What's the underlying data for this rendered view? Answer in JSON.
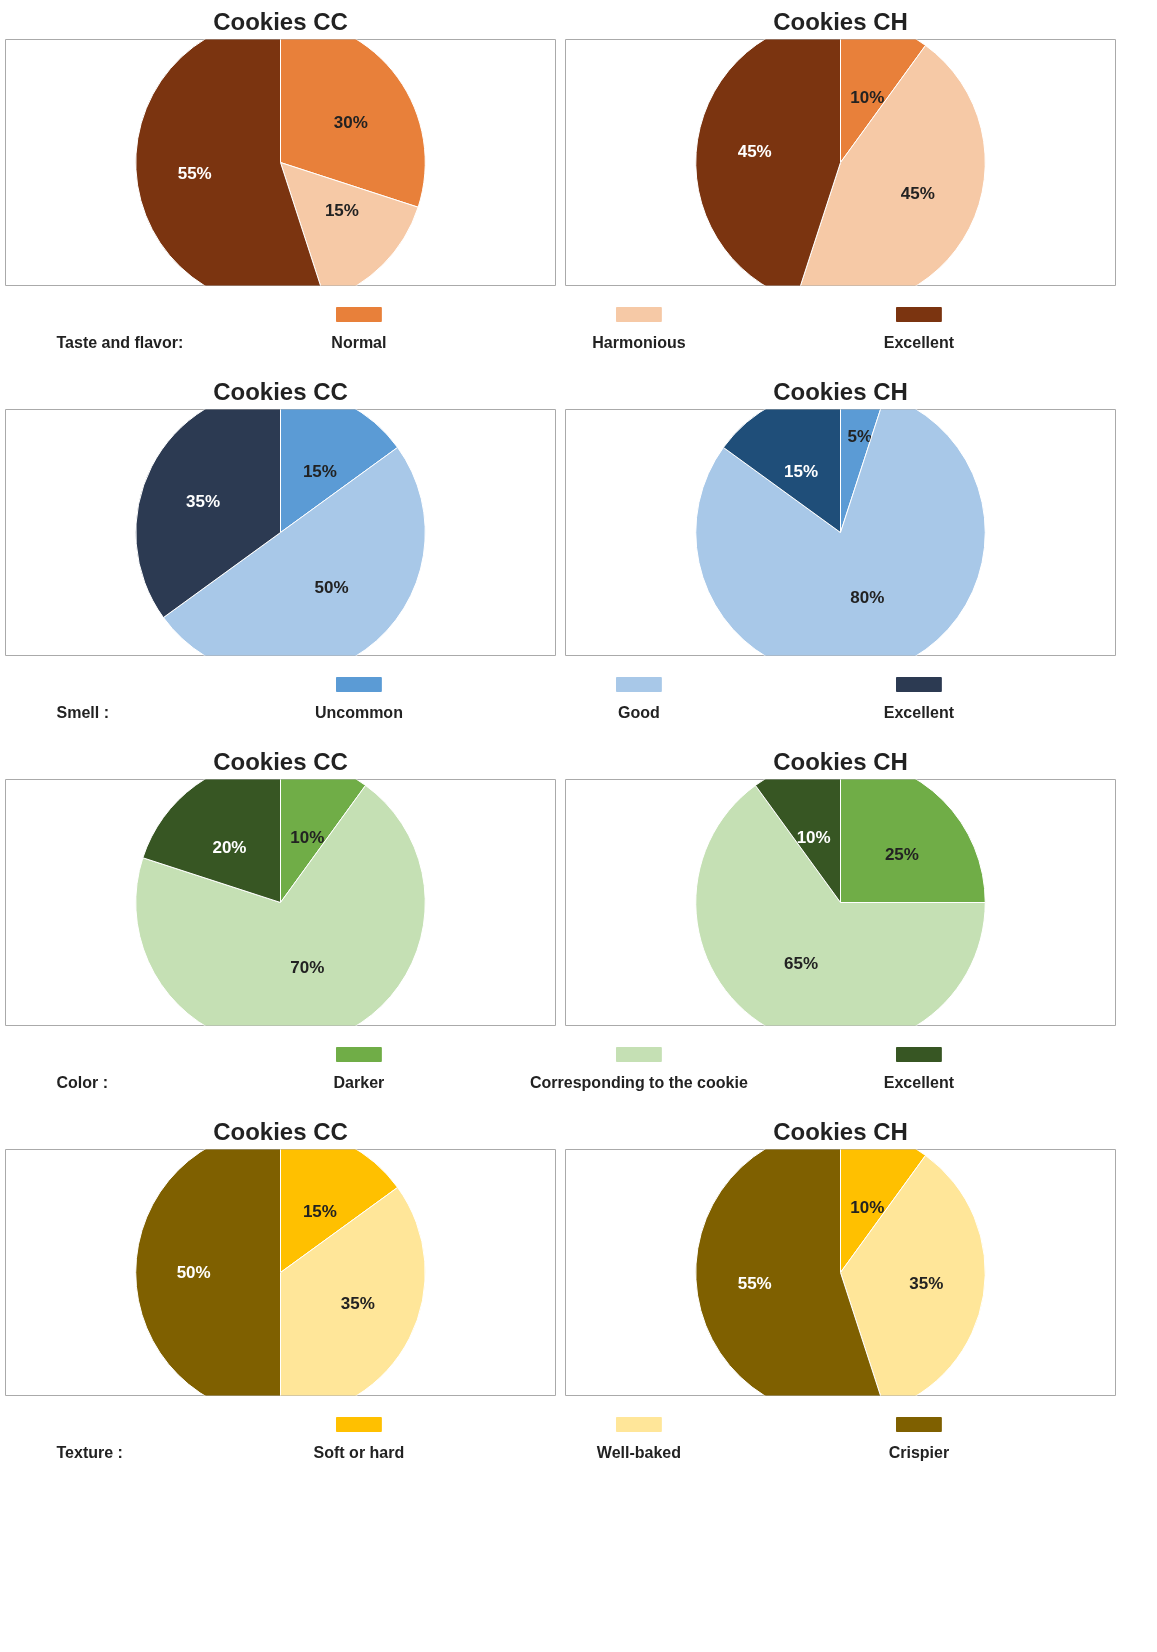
{
  "chart_data": [
    {
      "type": "pie",
      "title": "Cookies CC",
      "categories": [
        "Normal",
        "Harmonious",
        "Excellent"
      ],
      "values": [
        30,
        15,
        55
      ],
      "value_labels": [
        "30%",
        "15%",
        "55%"
      ],
      "colors": [
        "#e8803a",
        "#f6c9a6",
        "#7b3410"
      ],
      "legend": "bottom",
      "legend_title": "Taste and flavor:"
    },
    {
      "type": "pie",
      "title": "Cookies CH",
      "categories": [
        null,
        null,
        null
      ],
      "values": [
        10,
        45,
        45
      ],
      "value_labels": [
        "10%",
        "45%",
        "45%"
      ],
      "colors": [
        "#e8803a",
        "#f6c9a6",
        "#7b3410"
      ]
    },
    {
      "type": "pie",
      "title": "Cookies CC",
      "categories": [
        "Uncommon",
        "Good",
        "Excellent"
      ],
      "values": [
        15,
        50,
        35
      ],
      "value_labels": [
        "15%",
        "50%",
        "35%"
      ],
      "colors": [
        "#5b9bd5",
        "#a8c8e8",
        "#2c3a52"
      ],
      "legend": "bottom",
      "legend_title": "Smell :"
    },
    {
      "type": "pie",
      "title": "Cookies CH",
      "categories": [
        null,
        null,
        null
      ],
      "values": [
        5,
        80,
        15
      ],
      "value_labels": [
        "5%",
        "80%",
        "15%"
      ],
      "colors": [
        "#5b9bd5",
        "#a8c8e8",
        "#1f4e79"
      ]
    },
    {
      "type": "pie",
      "title": "Cookies CC",
      "categories": [
        "Darker",
        "Corresponding to the cookie",
        "Excellent"
      ],
      "values": [
        10,
        70,
        20
      ],
      "value_labels": [
        "10%",
        "70%",
        "20%"
      ],
      "colors": [
        "#70ad47",
        "#c5e0b4",
        "#375623"
      ],
      "legend": "bottom",
      "legend_title": "Color :"
    },
    {
      "type": "pie",
      "title": "Cookies CH",
      "categories": [
        null,
        null,
        null
      ],
      "values": [
        25,
        65,
        10
      ],
      "value_labels": [
        "25%",
        "65%",
        "10%"
      ],
      "colors": [
        "#70ad47",
        "#c5e0b4",
        "#375623"
      ]
    },
    {
      "type": "pie",
      "title": "Cookies CC",
      "categories": [
        "Soft or hard",
        "Well-baked",
        "Crispier"
      ],
      "values": [
        15,
        35,
        50
      ],
      "value_labels": [
        "15%",
        "35%",
        "50%"
      ],
      "colors": [
        "#ffc000",
        "#ffe699",
        "#7f6000"
      ],
      "legend": "bottom",
      "legend_title": "Texture :"
    },
    {
      "type": "pie",
      "title": "Cookies CH",
      "categories": [
        null,
        null,
        null
      ],
      "values": [
        10,
        35,
        55
      ],
      "value_labels": [
        "10%",
        "35%",
        "55%"
      ],
      "colors": [
        "#ffc000",
        "#ffe699",
        "#7f6000"
      ]
    }
  ]
}
